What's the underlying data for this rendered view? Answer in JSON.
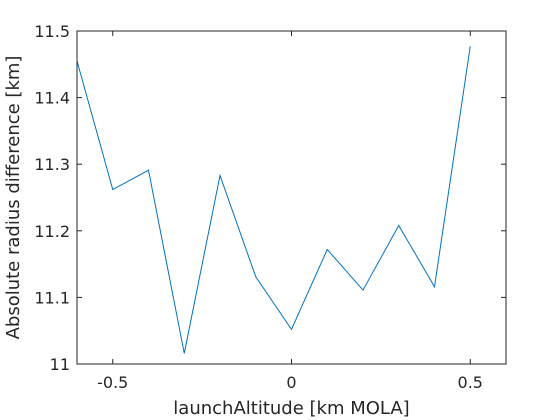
{
  "chart_data": {
    "type": "line",
    "xlabel": "launchAltitude [km MOLA]",
    "ylabel": "Absolute radius difference [km]",
    "xlim": [
      -0.6,
      0.6
    ],
    "ylim": [
      11.0,
      11.5
    ],
    "x_ticks": [
      -0.5,
      0,
      0.5
    ],
    "x_tick_labels": [
      "-0.5",
      "0",
      "0.5"
    ],
    "y_ticks": [
      11.0,
      11.1,
      11.2,
      11.3,
      11.4,
      11.5
    ],
    "y_tick_labels": [
      "11",
      "11.1",
      "11.2",
      "11.3",
      "11.4",
      "11.5"
    ],
    "grid": false,
    "box": true,
    "line_color": "#0072BD",
    "axis_color": "#262626",
    "series": [
      {
        "x": [
          -0.6,
          -0.5,
          -0.4,
          -0.3,
          -0.2,
          -0.1,
          0.0,
          0.1,
          0.2,
          0.3,
          0.4,
          0.5
        ],
        "y": [
          11.455,
          11.262,
          11.291,
          11.016,
          11.283,
          11.131,
          11.052,
          11.172,
          11.111,
          11.208,
          11.116,
          11.477
        ]
      }
    ]
  }
}
